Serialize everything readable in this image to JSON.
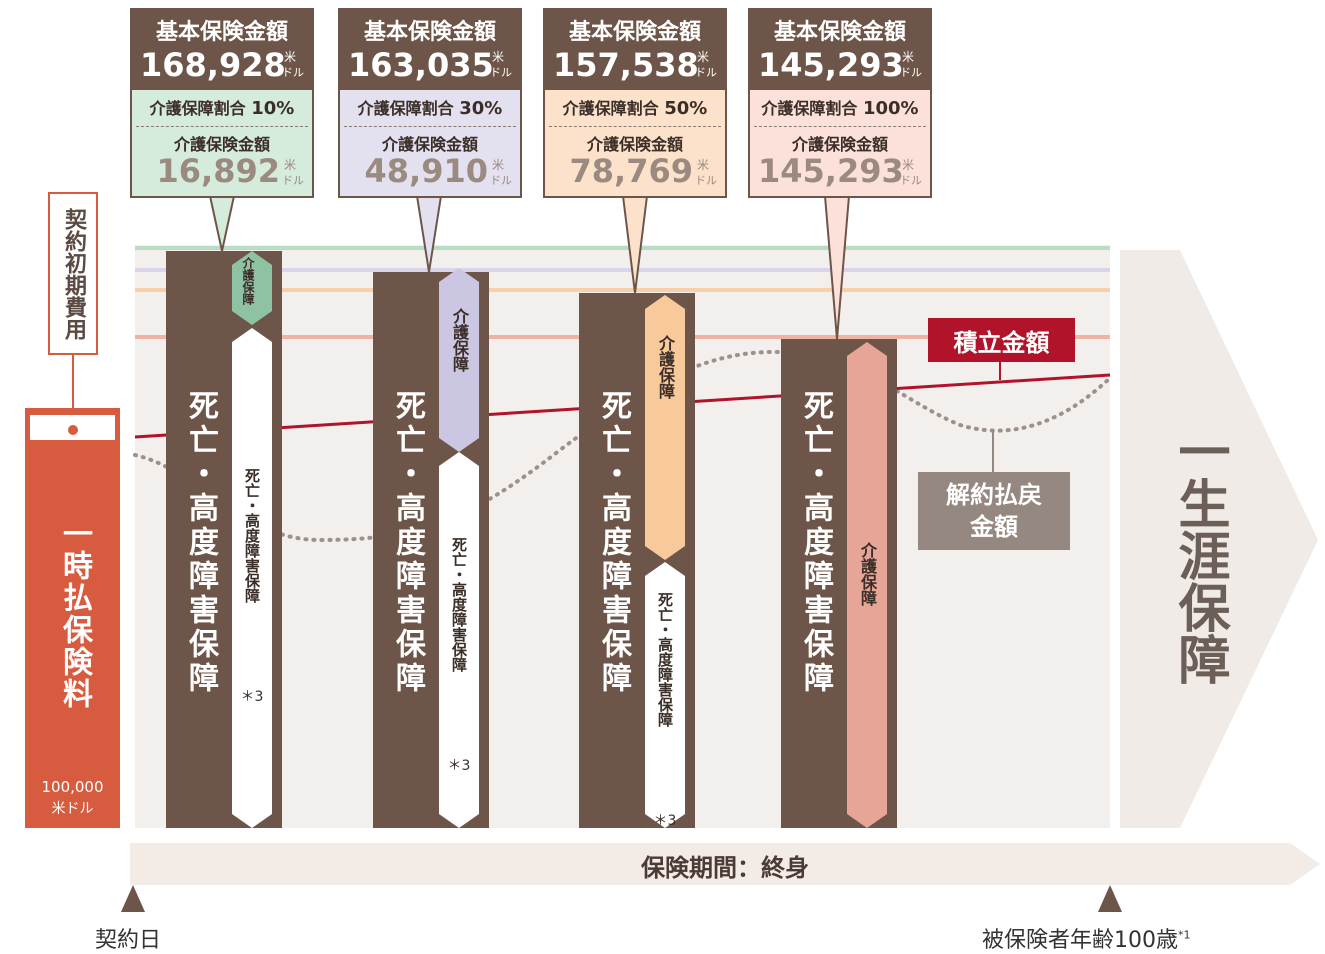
{
  "left_label": "契約初期費用",
  "premium": {
    "label": "一時払保険料",
    "amount": "100,000",
    "unit": "米ドル"
  },
  "plans": [
    {
      "basic_label": "基本保険金額",
      "basic_amount": "168,928",
      "unit_top": "米",
      "unit_bottom": "ドル",
      "ratio_label": "介護保障割合",
      "ratio": "10%",
      "care_label": "介護保険金額",
      "care_amount": "16,892",
      "death_label": "死亡・高度障害保障",
      "care_bar_label": "介護保障",
      "sub_label": "死亡・高度障害保障",
      "note": "＊3"
    },
    {
      "basic_label": "基本保険金額",
      "basic_amount": "163,035",
      "unit_top": "米",
      "unit_bottom": "ドル",
      "ratio_label": "介護保障割合",
      "ratio": "30%",
      "care_label": "介護保険金額",
      "care_amount": "48,910",
      "death_label": "死亡・高度障害保障",
      "care_bar_label": "介護保障",
      "sub_label": "死亡・高度障害保障",
      "note": "＊3"
    },
    {
      "basic_label": "基本保険金額",
      "basic_amount": "157,538",
      "unit_top": "米",
      "unit_bottom": "ドル",
      "ratio_label": "介護保障割合",
      "ratio": "50%",
      "care_label": "介護保険金額",
      "care_amount": "78,769",
      "death_label": "死亡・高度障害保障",
      "care_bar_label": "介護保障",
      "sub_label": "死亡・高度障害保障",
      "note": "＊3"
    },
    {
      "basic_label": "基本保険金額",
      "basic_amount": "145,293",
      "unit_top": "米",
      "unit_bottom": "ドル",
      "ratio_label": "介護保障割合",
      "ratio": "100%",
      "care_label": "介護保険金額",
      "care_amount": "145,293",
      "death_label": "死亡・高度障害保障",
      "care_bar_label": "介護保障"
    }
  ],
  "accumulation": "積立金額",
  "surrender": "解約払戻金額",
  "lifetime": "一生涯保障",
  "period": "保険期間：終身",
  "start": "契約日",
  "end": "被保険者年齢100歳",
  "end_note": "*1"
}
